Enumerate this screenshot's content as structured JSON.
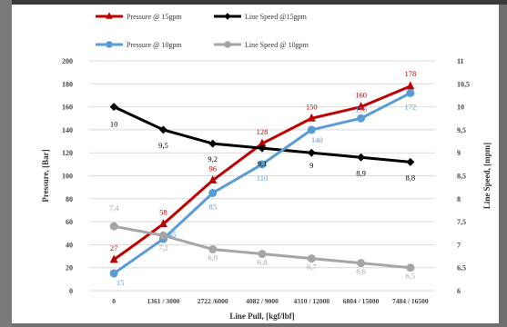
{
  "chart_data": {
    "type": "line",
    "categories": [
      "0",
      "1361 / 3000",
      "2722 /6000",
      "4082 / 9000",
      "4310 / 12000",
      "6804 / 15000",
      "7484 / 16500"
    ],
    "xlabel": "Line Pull, [kgf/lbf]",
    "ylabel_left": "Pressure, [Bar]",
    "ylabel_right": "Line Speed, [mpm]",
    "ylim_left": [
      0,
      200
    ],
    "yticks_left": [
      "0",
      "20",
      "40",
      "60",
      "80",
      "100",
      "120",
      "140",
      "160",
      "180",
      "200"
    ],
    "ylim_right": [
      6,
      11
    ],
    "yticks_right": [
      "6",
      "6,5",
      "7",
      "7,5",
      "8",
      "8,5",
      "9",
      "9,5",
      "10",
      "10,5",
      "11"
    ],
    "grid": "horizontal",
    "legend_position": "top",
    "series": [
      {
        "name": "Pressure @ 15gpm",
        "axis": "left",
        "color": "#c00000",
        "marker": "triangle",
        "values": [
          27,
          58,
          96,
          128,
          150,
          160,
          178
        ],
        "labels": [
          "27",
          "58",
          "96",
          "128",
          "150",
          "160",
          "178"
        ]
      },
      {
        "name": "Line Speed @15gpm",
        "axis": "right",
        "color": "#000000",
        "marker": "diamond",
        "values": [
          10,
          9.5,
          9.2,
          9.1,
          9,
          8.9,
          8.8
        ],
        "labels": [
          "10",
          "9,5",
          "9,2",
          "9,1",
          "9",
          "8,9",
          "8,8"
        ]
      },
      {
        "name": "Pressure @ 10gpm",
        "axis": "left",
        "color": "#5b9bd5",
        "marker": "circle",
        "values": [
          15,
          45,
          85,
          110,
          140,
          150,
          172
        ],
        "labels": [
          "15",
          "45",
          "85",
          "110",
          "140",
          "150",
          "172"
        ]
      },
      {
        "name": "Line Speed @ 10gpm",
        "axis": "right",
        "color": "#a5a5a5",
        "marker": "circle",
        "values": [
          7.4,
          7.2,
          6.9,
          6.8,
          6.7,
          6.6,
          6.5
        ],
        "labels": [
          "7,4",
          "7,2",
          "6,9",
          "6,8",
          "6,7",
          "6,6",
          "6,5"
        ]
      }
    ]
  }
}
